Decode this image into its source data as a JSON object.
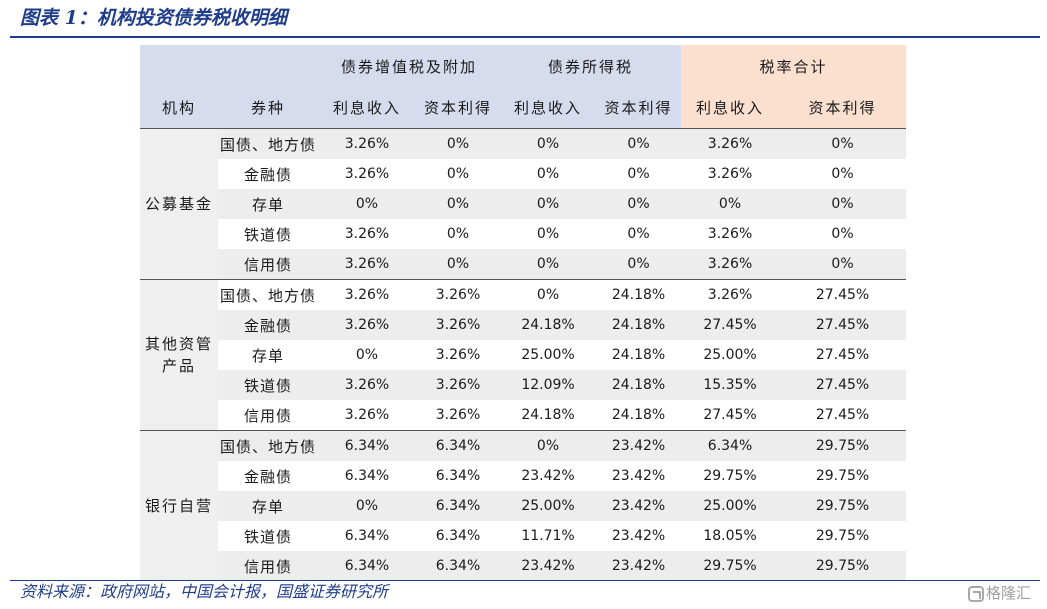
{
  "title": "图表 1：机构投资债券税收明细",
  "source": "资料来源：政府网站，中国会计报，国盛证券研究所",
  "watermark": "格隆汇",
  "colors": {
    "title_blue": "#1f3d8a",
    "header_blue": "#d6dcee",
    "header_pink": "#fbdfcf",
    "row_shade": "#ededed"
  },
  "table": {
    "col_institution": "机构",
    "col_bond": "券种",
    "groups": [
      "债券增值税及附加",
      "债券所得税",
      "税率合计"
    ],
    "subheaders": [
      "利息收入",
      "资本利得",
      "利息收入",
      "资本利得",
      "利息收入",
      "资本利得"
    ],
    "sections": [
      {
        "institution": "公募基金",
        "rows": [
          {
            "bond": "国债、地方债",
            "values": [
              "3.26%",
              "0%",
              "0%",
              "0%",
              "3.26%",
              "0%"
            ]
          },
          {
            "bond": "金融债",
            "values": [
              "3.26%",
              "0%",
              "0%",
              "0%",
              "3.26%",
              "0%"
            ]
          },
          {
            "bond": "存单",
            "values": [
              "0%",
              "0%",
              "0%",
              "0%",
              "0%",
              "0%"
            ]
          },
          {
            "bond": "铁道债",
            "values": [
              "3.26%",
              "0%",
              "0%",
              "0%",
              "3.26%",
              "0%"
            ]
          },
          {
            "bond": "信用债",
            "values": [
              "3.26%",
              "0%",
              "0%",
              "0%",
              "3.26%",
              "0%"
            ]
          }
        ]
      },
      {
        "institution_line1": "其他资管",
        "institution_line2": "产品",
        "rows": [
          {
            "bond": "国债、地方债",
            "values": [
              "3.26%",
              "3.26%",
              "0%",
              "24.18%",
              "3.26%",
              "27.45%"
            ]
          },
          {
            "bond": "金融债",
            "values": [
              "3.26%",
              "3.26%",
              "24.18%",
              "24.18%",
              "27.45%",
              "27.45%"
            ]
          },
          {
            "bond": "存单",
            "values": [
              "0%",
              "3.26%",
              "25.00%",
              "24.18%",
              "25.00%",
              "27.45%"
            ]
          },
          {
            "bond": "铁道债",
            "values": [
              "3.26%",
              "3.26%",
              "12.09%",
              "24.18%",
              "15.35%",
              "27.45%"
            ]
          },
          {
            "bond": "信用债",
            "values": [
              "3.26%",
              "3.26%",
              "24.18%",
              "24.18%",
              "27.45%",
              "27.45%"
            ]
          }
        ]
      },
      {
        "institution": "银行自营",
        "rows": [
          {
            "bond": "国债、地方债",
            "values": [
              "6.34%",
              "6.34%",
              "0%",
              "23.42%",
              "6.34%",
              "29.75%"
            ]
          },
          {
            "bond": "金融债",
            "values": [
              "6.34%",
              "6.34%",
              "23.42%",
              "23.42%",
              "29.75%",
              "29.75%"
            ]
          },
          {
            "bond": "存单",
            "values": [
              "0%",
              "6.34%",
              "25.00%",
              "23.42%",
              "25.00%",
              "29.75%"
            ]
          },
          {
            "bond": "铁道债",
            "values": [
              "6.34%",
              "6.34%",
              "11.71%",
              "23.42%",
              "18.05%",
              "29.75%"
            ]
          },
          {
            "bond": "信用债",
            "values": [
              "6.34%",
              "6.34%",
              "23.42%",
              "23.42%",
              "29.75%",
              "29.75%"
            ]
          }
        ]
      }
    ]
  }
}
